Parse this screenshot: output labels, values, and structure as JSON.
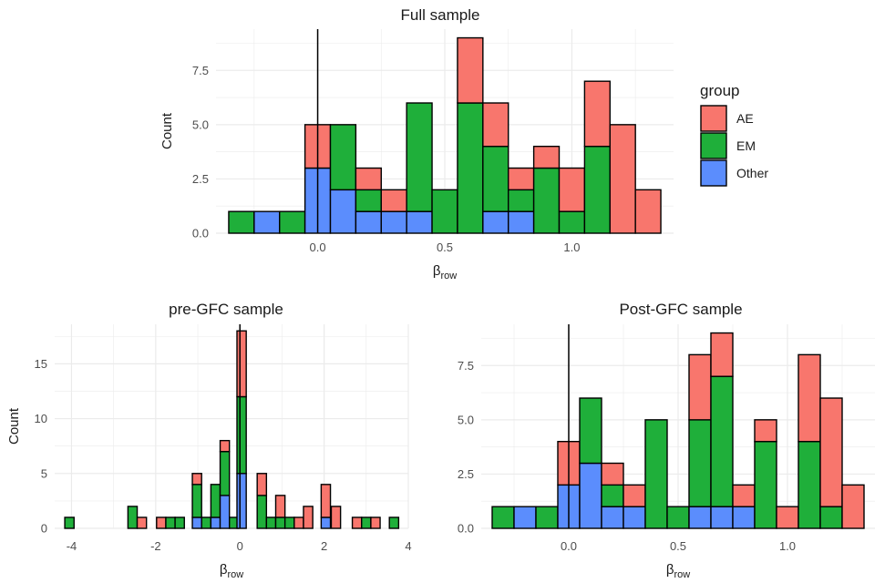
{
  "colors": {
    "AE": "#F8766D",
    "EM": "#1FAF3A",
    "Other": "#5B8DFD",
    "grid": "#ebebeb",
    "outline": "#000000"
  },
  "legend": {
    "title": "group",
    "entries": [
      {
        "label": "AE",
        "color": "#F8766D"
      },
      {
        "label": "EM",
        "color": "#1FAF3A"
      },
      {
        "label": "Other",
        "color": "#5B8DFD"
      }
    ]
  },
  "chart_data": [
    {
      "type": "bar",
      "title": "Full sample",
      "xlabel": "β",
      "xlabel_sub": "row",
      "ylabel": "Count",
      "stacked": true,
      "vline_x": 0,
      "xlim": [
        -0.4,
        1.4
      ],
      "ylim": [
        0,
        9.4
      ],
      "xticks": [
        0.0,
        0.5,
        1.0
      ],
      "xtick_labels": [
        "0.0",
        "0.5",
        "1.0"
      ],
      "yticks": [
        0,
        2.5,
        5,
        7.5
      ],
      "ytick_labels": [
        "0.0",
        "2.5",
        "5.0",
        "7.5"
      ],
      "bin_width": 0.1,
      "bins": [
        {
          "x": -0.3,
          "Other": 0,
          "EM": 1,
          "AE": 0
        },
        {
          "x": -0.2,
          "Other": 1,
          "EM": 0,
          "AE": 0
        },
        {
          "x": -0.1,
          "Other": 0,
          "EM": 1,
          "AE": 0
        },
        {
          "x": 0.0,
          "Other": 3,
          "EM": 0,
          "AE": 2
        },
        {
          "x": 0.1,
          "Other": 2,
          "EM": 3,
          "AE": 0
        },
        {
          "x": 0.2,
          "Other": 1,
          "EM": 1,
          "AE": 1
        },
        {
          "x": 0.3,
          "Other": 1,
          "EM": 0,
          "AE": 1
        },
        {
          "x": 0.4,
          "Other": 1,
          "EM": 5,
          "AE": 0
        },
        {
          "x": 0.5,
          "Other": 0,
          "EM": 2,
          "AE": 0
        },
        {
          "x": 0.6,
          "Other": 0,
          "EM": 6,
          "AE": 3
        },
        {
          "x": 0.7,
          "Other": 1,
          "EM": 3,
          "AE": 2
        },
        {
          "x": 0.8,
          "Other": 1,
          "EM": 1,
          "AE": 1
        },
        {
          "x": 0.9,
          "Other": 0,
          "EM": 3,
          "AE": 1
        },
        {
          "x": 1.0,
          "Other": 0,
          "EM": 1,
          "AE": 2
        },
        {
          "x": 1.1,
          "Other": 0,
          "EM": 4,
          "AE": 3
        },
        {
          "x": 1.2,
          "Other": 0,
          "EM": 0,
          "AE": 5
        },
        {
          "x": 1.3,
          "Other": 0,
          "EM": 0,
          "AE": 2
        }
      ]
    },
    {
      "type": "bar",
      "title": "pre-GFC sample",
      "xlabel": "β",
      "xlabel_sub": "row",
      "ylabel": "Count",
      "stacked": true,
      "vline_x": 0,
      "xlim": [
        -4.4,
        4.0
      ],
      "ylim": [
        0,
        18.6
      ],
      "xticks": [
        -4,
        -2,
        0,
        2,
        4
      ],
      "xtick_labels": [
        "-4",
        "-2",
        "0",
        "2",
        "4"
      ],
      "yticks": [
        0,
        5,
        10,
        15
      ],
      "ytick_labels": [
        "0",
        "5",
        "10",
        "15"
      ],
      "bin_width": 0.22,
      "bins": [
        {
          "x": -4.05,
          "Other": 0,
          "EM": 1,
          "AE": 0
        },
        {
          "x": -2.55,
          "Other": 0,
          "EM": 2,
          "AE": 0
        },
        {
          "x": -2.33,
          "Other": 0,
          "EM": 0,
          "AE": 1
        },
        {
          "x": -1.87,
          "Other": 0,
          "EM": 0,
          "AE": 1
        },
        {
          "x": -1.65,
          "Other": 0,
          "EM": 1,
          "AE": 0
        },
        {
          "x": -1.43,
          "Other": 0,
          "EM": 1,
          "AE": 0
        },
        {
          "x": -1.02,
          "Other": 1,
          "EM": 3,
          "AE": 1
        },
        {
          "x": -0.8,
          "Other": 0,
          "EM": 1,
          "AE": 0
        },
        {
          "x": -0.58,
          "Other": 1,
          "EM": 3,
          "AE": 0
        },
        {
          "x": -0.36,
          "Other": 3,
          "EM": 4,
          "AE": 1
        },
        {
          "x": -0.14,
          "Other": 0,
          "EM": 1,
          "AE": 0
        },
        {
          "x": 0.04,
          "Other": 5,
          "EM": 7,
          "AE": 6
        },
        {
          "x": 0.52,
          "Other": 0,
          "EM": 3,
          "AE": 2
        },
        {
          "x": 0.74,
          "Other": 0,
          "EM": 1,
          "AE": 0
        },
        {
          "x": 0.96,
          "Other": 0,
          "EM": 1,
          "AE": 2
        },
        {
          "x": 1.18,
          "Other": 0,
          "EM": 1,
          "AE": 0
        },
        {
          "x": 1.4,
          "Other": 0,
          "EM": 0,
          "AE": 1
        },
        {
          "x": 1.62,
          "Other": 0,
          "EM": 0,
          "AE": 2
        },
        {
          "x": 2.04,
          "Other": 1,
          "EM": 0,
          "AE": 3
        },
        {
          "x": 2.28,
          "Other": 0,
          "EM": 0,
          "AE": 2
        },
        {
          "x": 2.78,
          "Other": 0,
          "EM": 0,
          "AE": 1
        },
        {
          "x": 3.0,
          "Other": 0,
          "EM": 1,
          "AE": 0
        },
        {
          "x": 3.22,
          "Other": 0,
          "EM": 0,
          "AE": 1
        },
        {
          "x": 3.66,
          "Other": 0,
          "EM": 1,
          "AE": 0
        }
      ]
    },
    {
      "type": "bar",
      "title": "Post-GFC sample",
      "xlabel": "β",
      "xlabel_sub": "row",
      "ylabel": "",
      "stacked": true,
      "vline_x": 0,
      "xlim": [
        -0.4,
        1.4
      ],
      "ylim": [
        0,
        9.4
      ],
      "xticks": [
        0.0,
        0.5,
        1.0
      ],
      "xtick_labels": [
        "0.0",
        "0.5",
        "1.0"
      ],
      "yticks": [
        0,
        2.5,
        5,
        7.5
      ],
      "ytick_labels": [
        "0.0",
        "2.5",
        "5.0",
        "7.5"
      ],
      "bin_width": 0.1,
      "bins": [
        {
          "x": -0.3,
          "Other": 0,
          "EM": 1,
          "AE": 0
        },
        {
          "x": -0.2,
          "Other": 1,
          "EM": 0,
          "AE": 0
        },
        {
          "x": -0.1,
          "Other": 0,
          "EM": 1,
          "AE": 0
        },
        {
          "x": 0.0,
          "Other": 2,
          "EM": 0,
          "AE": 2
        },
        {
          "x": 0.1,
          "Other": 3,
          "EM": 3,
          "AE": 0
        },
        {
          "x": 0.2,
          "Other": 1,
          "EM": 1,
          "AE": 1
        },
        {
          "x": 0.3,
          "Other": 1,
          "EM": 0,
          "AE": 1
        },
        {
          "x": 0.4,
          "Other": 0,
          "EM": 5,
          "AE": 0
        },
        {
          "x": 0.5,
          "Other": 0,
          "EM": 1,
          "AE": 0
        },
        {
          "x": 0.6,
          "Other": 1,
          "EM": 4,
          "AE": 3
        },
        {
          "x": 0.7,
          "Other": 1,
          "EM": 6,
          "AE": 2
        },
        {
          "x": 0.8,
          "Other": 1,
          "EM": 0,
          "AE": 1
        },
        {
          "x": 0.9,
          "Other": 0,
          "EM": 4,
          "AE": 1
        },
        {
          "x": 1.0,
          "Other": 0,
          "EM": 0,
          "AE": 1
        },
        {
          "x": 1.1,
          "Other": 0,
          "EM": 4,
          "AE": 4
        },
        {
          "x": 1.2,
          "Other": 0,
          "EM": 1,
          "AE": 5
        },
        {
          "x": 1.3,
          "Other": 0,
          "EM": 0,
          "AE": 2
        }
      ]
    }
  ]
}
